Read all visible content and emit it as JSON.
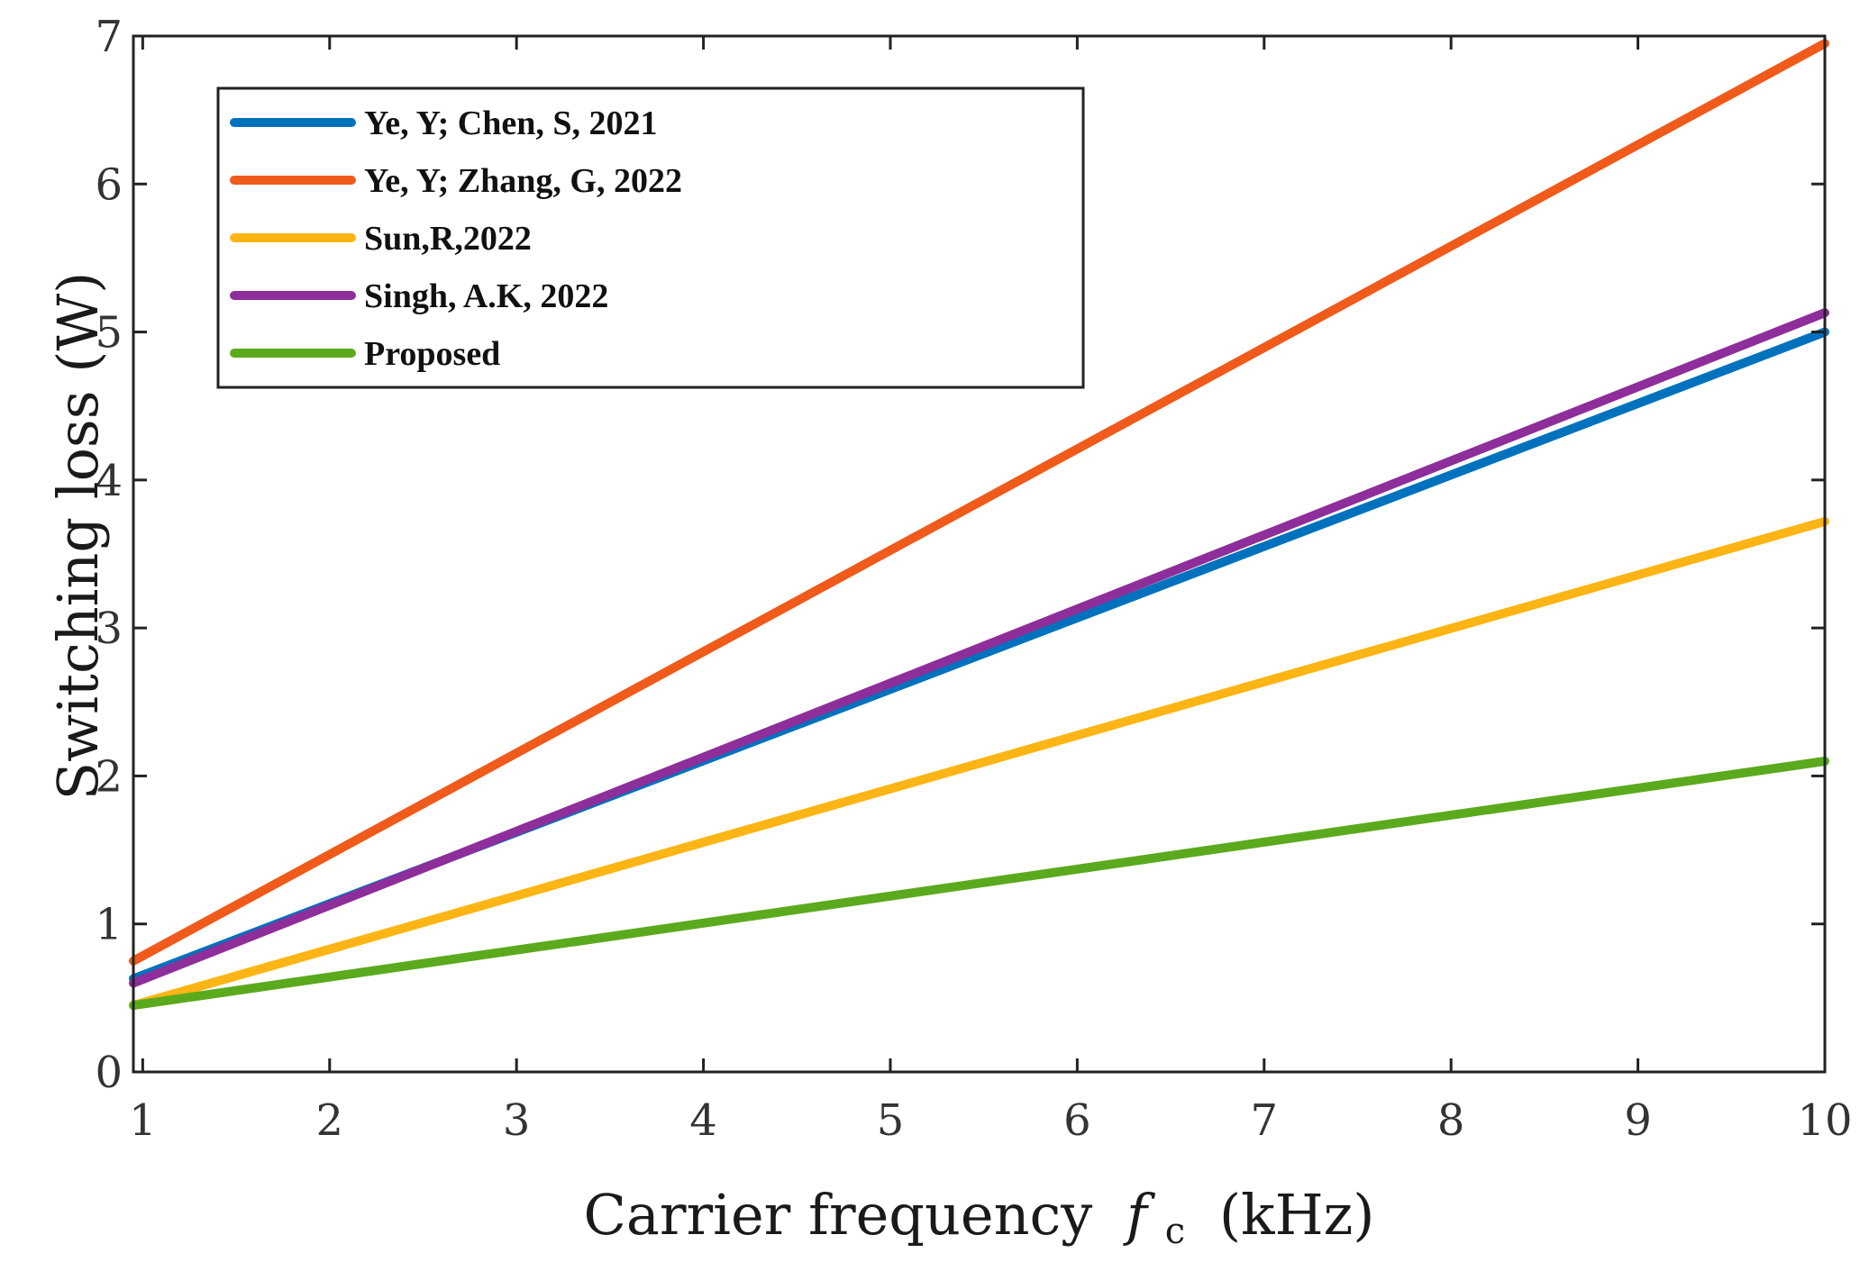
{
  "chart_data": {
    "type": "line",
    "title": "",
    "xlabel": "Carrier frequency",
    "xlabel_symbol": "f",
    "xlabel_subscript": "c",
    "xlabel_unit": "(kHz)",
    "ylabel": "Switching loss (W)",
    "xlim": [
      0.95,
      10
    ],
    "ylim": [
      0,
      7
    ],
    "x_ticks": [
      1,
      2,
      3,
      4,
      5,
      6,
      7,
      8,
      9,
      10
    ],
    "y_ticks": [
      0,
      1,
      2,
      3,
      4,
      5,
      6,
      7
    ],
    "grid": false,
    "legend_position": "top-left",
    "series": [
      {
        "name": "Ye, Y; Chen, S, 2021",
        "color": "#0072BD",
        "x": [
          0.95,
          10
        ],
        "y": [
          0.63,
          5.0
        ]
      },
      {
        "name": "Ye, Y; Zhang, G, 2022",
        "color": "#F05A1A",
        "x": [
          0.95,
          10
        ],
        "y": [
          0.75,
          6.95
        ]
      },
      {
        "name": "Sun,R,2022",
        "color": "#FDB515",
        "x": [
          0.95,
          10
        ],
        "y": [
          0.45,
          3.72
        ]
      },
      {
        "name": "Singh, A.K, 2022",
        "color": "#8E2E9A",
        "x": [
          0.95,
          10
        ],
        "y": [
          0.6,
          5.13
        ]
      },
      {
        "name": "Proposed",
        "color": "#5BAA1E",
        "x": [
          0.95,
          10
        ],
        "y": [
          0.45,
          2.1
        ]
      }
    ]
  }
}
